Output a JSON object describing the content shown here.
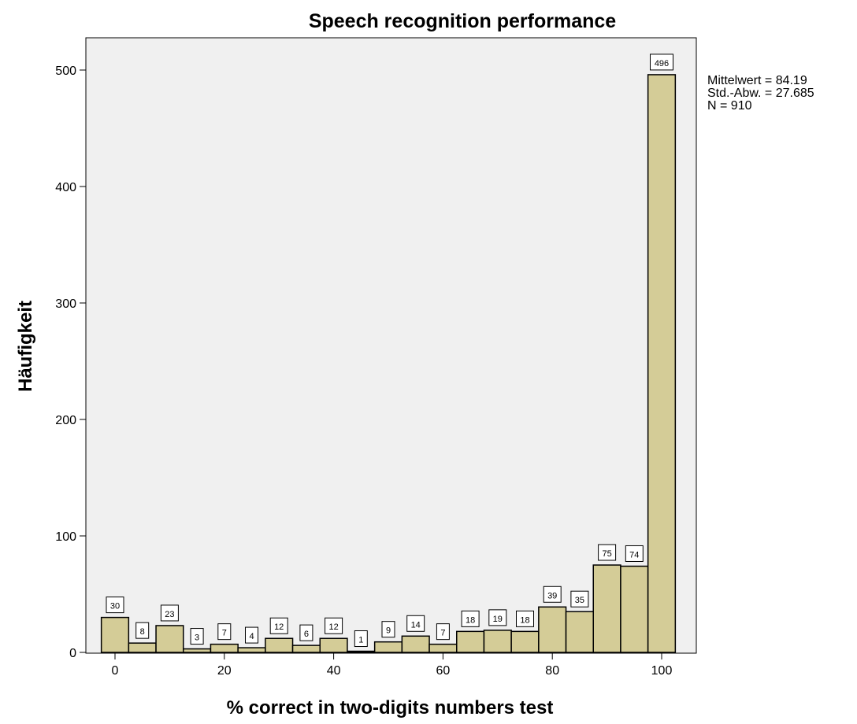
{
  "chart_data": {
    "type": "bar",
    "title": "Speech recognition performance",
    "xlabel": "% correct in two-digits numbers test",
    "ylabel": "Häufigkeit",
    "xlim": [
      -2.5,
      102.5
    ],
    "ylim": [
      0,
      500
    ],
    "xticks": [
      0,
      20,
      40,
      60,
      80,
      100
    ],
    "yticks": [
      0,
      100,
      200,
      300,
      400,
      500
    ],
    "bin_width": 5,
    "bins": [
      {
        "x": 0,
        "value": 30
      },
      {
        "x": 5,
        "value": 8
      },
      {
        "x": 10,
        "value": 23
      },
      {
        "x": 15,
        "value": 3
      },
      {
        "x": 20,
        "value": 7
      },
      {
        "x": 25,
        "value": 4
      },
      {
        "x": 30,
        "value": 12
      },
      {
        "x": 35,
        "value": 6
      },
      {
        "x": 40,
        "value": 12
      },
      {
        "x": 45,
        "value": 1
      },
      {
        "x": 50,
        "value": 9
      },
      {
        "x": 55,
        "value": 14
      },
      {
        "x": 60,
        "value": 7
      },
      {
        "x": 65,
        "value": 18
      },
      {
        "x": 70,
        "value": 19
      },
      {
        "x": 75,
        "value": 18
      },
      {
        "x": 80,
        "value": 39
      },
      {
        "x": 85,
        "value": 35
      },
      {
        "x": 90,
        "value": 75
      },
      {
        "x": 95,
        "value": 74
      },
      {
        "x": 100,
        "value": 496
      }
    ],
    "stats": [
      "Mittelwert = 84.19",
      "Std.-Abw. = 27.685",
      "N = 910"
    ],
    "colors": {
      "bar_fill": "#d4cc97",
      "bar_stroke": "#000000",
      "plot_background": "#f0f0f0",
      "page_background": "#ffffff"
    }
  }
}
